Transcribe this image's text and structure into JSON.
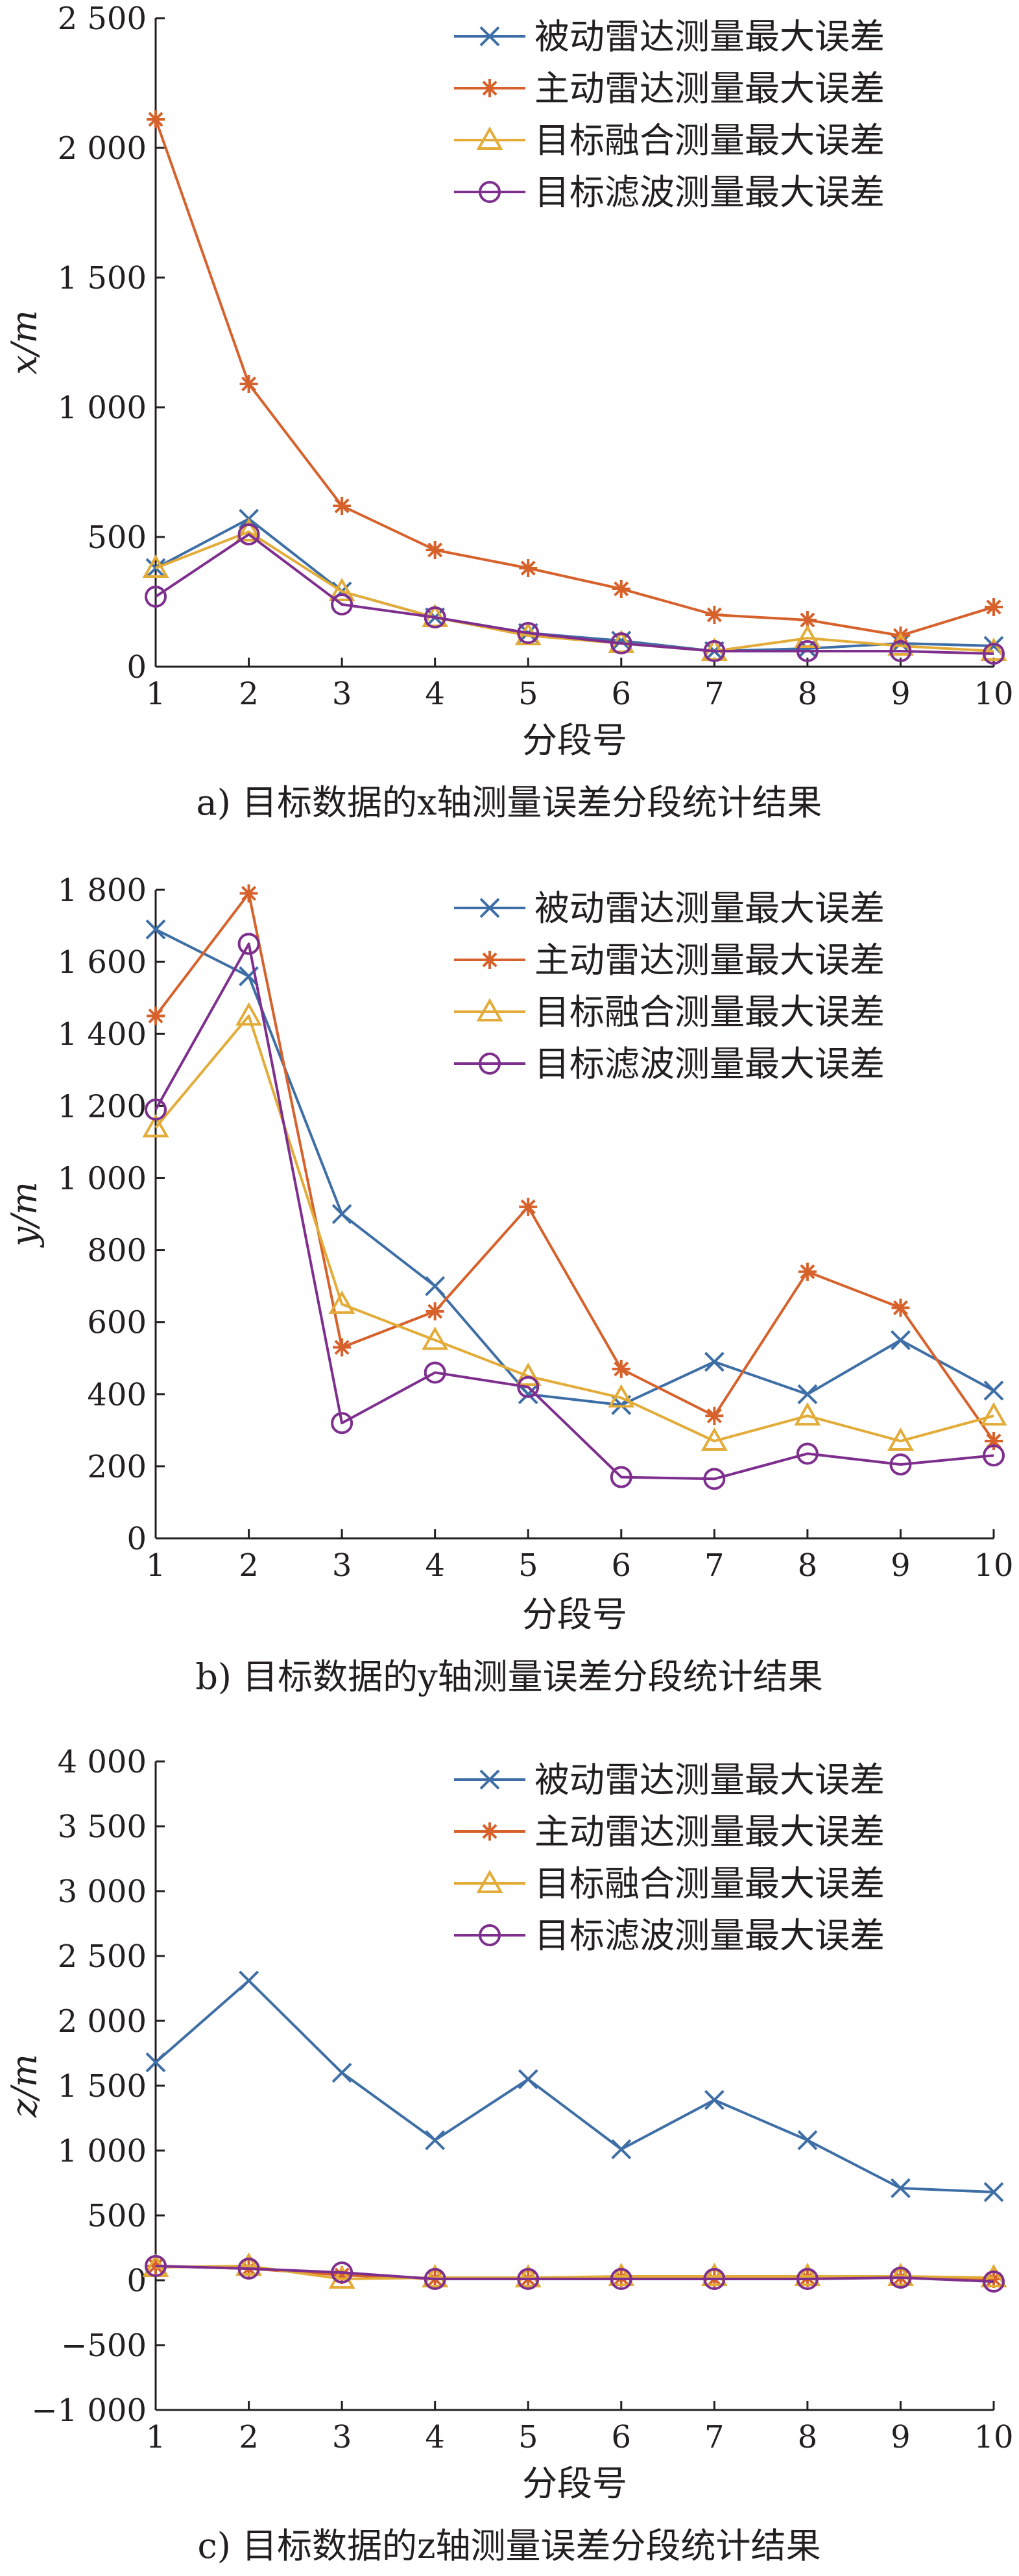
{
  "chart_data": [
    {
      "type": "line",
      "panel": "a",
      "caption": "a) 目标数据的x轴测量误差分段统计结果",
      "xlabel": "分段号",
      "ylabel": "x/m",
      "x": [
        1,
        2,
        3,
        4,
        5,
        6,
        7,
        8,
        9,
        10
      ],
      "xlim": [
        1,
        10
      ],
      "ylim": [
        0,
        2500
      ],
      "yticks": [
        0,
        500,
        1000,
        1500,
        2000,
        2500
      ],
      "ytick_labels": [
        "0",
        "500",
        "1 000",
        "1 500",
        "2 000",
        "2 500"
      ],
      "grid": false,
      "legend": "top-right",
      "series": [
        {
          "name": "被动雷达测量最大误差",
          "color": "#3e6ea6",
          "marker": "x",
          "values": [
            380,
            570,
            290,
            190,
            130,
            100,
            60,
            70,
            90,
            80
          ]
        },
        {
          "name": "主动雷达测量最大误差",
          "color": "#d7612b",
          "marker": "asterisk",
          "values": [
            2110,
            1090,
            620,
            450,
            380,
            300,
            200,
            180,
            120,
            230
          ]
        },
        {
          "name": "目标融合测量最大误差",
          "color": "#e3ab37",
          "marker": "triangle",
          "values": [
            380,
            520,
            290,
            190,
            120,
            90,
            60,
            110,
            80,
            60
          ]
        },
        {
          "name": "目标滤波测量最大误差",
          "color": "#7e2f8e",
          "marker": "circle",
          "values": [
            270,
            510,
            240,
            190,
            130,
            90,
            60,
            60,
            60,
            50
          ]
        }
      ]
    },
    {
      "type": "line",
      "panel": "b",
      "caption": "b) 目标数据的y轴测量误差分段统计结果",
      "xlabel": "分段号",
      "ylabel": "y/m",
      "x": [
        1,
        2,
        3,
        4,
        5,
        6,
        7,
        8,
        9,
        10
      ],
      "xlim": [
        1,
        10
      ],
      "ylim": [
        0,
        1800
      ],
      "yticks": [
        0,
        200,
        400,
        600,
        800,
        1000,
        1200,
        1400,
        1600,
        1800
      ],
      "ytick_labels": [
        "0",
        "200",
        "400",
        "600",
        "800",
        "1 000",
        "1 200",
        "1 400",
        "1 600",
        "1 800"
      ],
      "grid": false,
      "legend": "top-right",
      "series": [
        {
          "name": "被动雷达测量最大误差",
          "color": "#3e6ea6",
          "marker": "x",
          "values": [
            1690,
            1560,
            900,
            700,
            400,
            370,
            490,
            400,
            550,
            410
          ]
        },
        {
          "name": "主动雷达测量最大误差",
          "color": "#d7612b",
          "marker": "asterisk",
          "values": [
            1450,
            1790,
            530,
            630,
            920,
            470,
            340,
            740,
            640,
            270
          ]
        },
        {
          "name": "目标融合测量最大误差",
          "color": "#e3ab37",
          "marker": "triangle",
          "values": [
            1140,
            1450,
            650,
            550,
            450,
            390,
            270,
            340,
            270,
            340
          ]
        },
        {
          "name": "目标滤波测量最大误差",
          "color": "#7e2f8e",
          "marker": "circle",
          "values": [
            1190,
            1650,
            320,
            460,
            420,
            170,
            165,
            235,
            205,
            230
          ]
        }
      ]
    },
    {
      "type": "line",
      "panel": "c",
      "caption": "c) 目标数据的z轴测量误差分段统计结果",
      "xlabel": "分段号",
      "ylabel": "z/m",
      "x": [
        1,
        2,
        3,
        4,
        5,
        6,
        7,
        8,
        9,
        10
      ],
      "xlim": [
        1,
        10
      ],
      "ylim": [
        -1000,
        4000
      ],
      "yticks": [
        -1000,
        -500,
        0,
        500,
        1000,
        1500,
        2000,
        2500,
        3000,
        3500,
        4000
      ],
      "ytick_labels": [
        "−1 000",
        "−500",
        "0",
        "500",
        "1 000",
        "1 500",
        "2 000",
        "2 500",
        "3 000",
        "3 500",
        "4 000"
      ],
      "grid": false,
      "legend": "top-right",
      "series": [
        {
          "name": "被动雷达测量最大误差",
          "color": "#3e6ea6",
          "marker": "x",
          "values": [
            1680,
            2310,
            1600,
            1080,
            1550,
            1010,
            1390,
            1080,
            710,
            680
          ]
        },
        {
          "name": "主动雷达测量最大误差",
          "color": "#d7612b",
          "marker": "asterisk",
          "values": [
            110,
            90,
            40,
            10,
            10,
            20,
            10,
            20,
            20,
            10
          ]
        },
        {
          "name": "目标融合测量最大误差",
          "color": "#e3ab37",
          "marker": "triangle",
          "values": [
            100,
            110,
            10,
            20,
            20,
            30,
            30,
            30,
            30,
            20
          ]
        },
        {
          "name": "目标滤波测量最大误差",
          "color": "#7e2f8e",
          "marker": "circle",
          "values": [
            110,
            90,
            60,
            10,
            10,
            10,
            10,
            10,
            20,
            -10
          ]
        }
      ]
    }
  ]
}
